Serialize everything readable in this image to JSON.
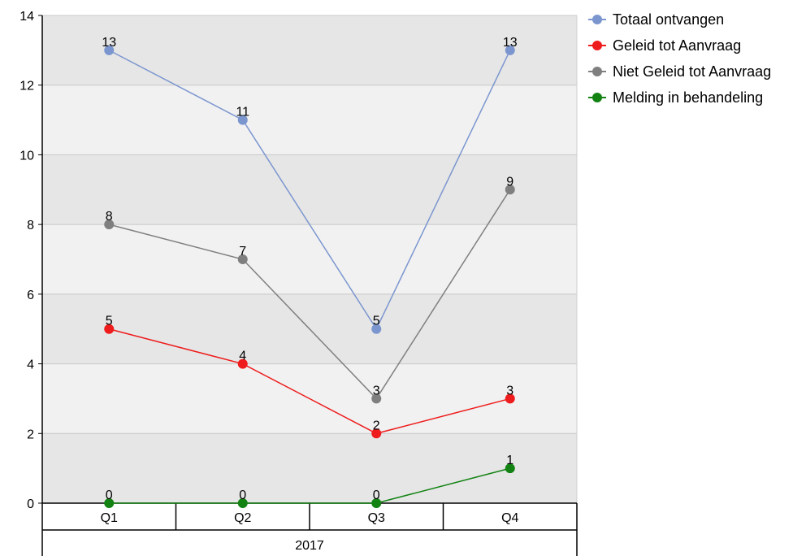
{
  "chart_data": {
    "type": "line",
    "categories": [
      "Q1",
      "Q2",
      "Q3",
      "Q4"
    ],
    "group_label": "2017",
    "ylim": [
      0,
      14
    ],
    "yticks": [
      0,
      2,
      4,
      6,
      8,
      10,
      12,
      14
    ],
    "grid": true,
    "legend_position": "right",
    "series": [
      {
        "name": "Totaal ontvangen",
        "color": "#7b96cf",
        "values": [
          13,
          11,
          5,
          13
        ]
      },
      {
        "name": "Geleid tot Aanvraag",
        "color": "#ee1c1c",
        "values": [
          5,
          4,
          2,
          3
        ]
      },
      {
        "name": "Niet Geleid tot Aanvraag",
        "color": "#7f7f7f",
        "values": [
          8,
          7,
          3,
          9
        ]
      },
      {
        "name": "Melding in behandeling",
        "color": "#128212",
        "values": [
          0,
          0,
          0,
          1
        ]
      }
    ]
  }
}
